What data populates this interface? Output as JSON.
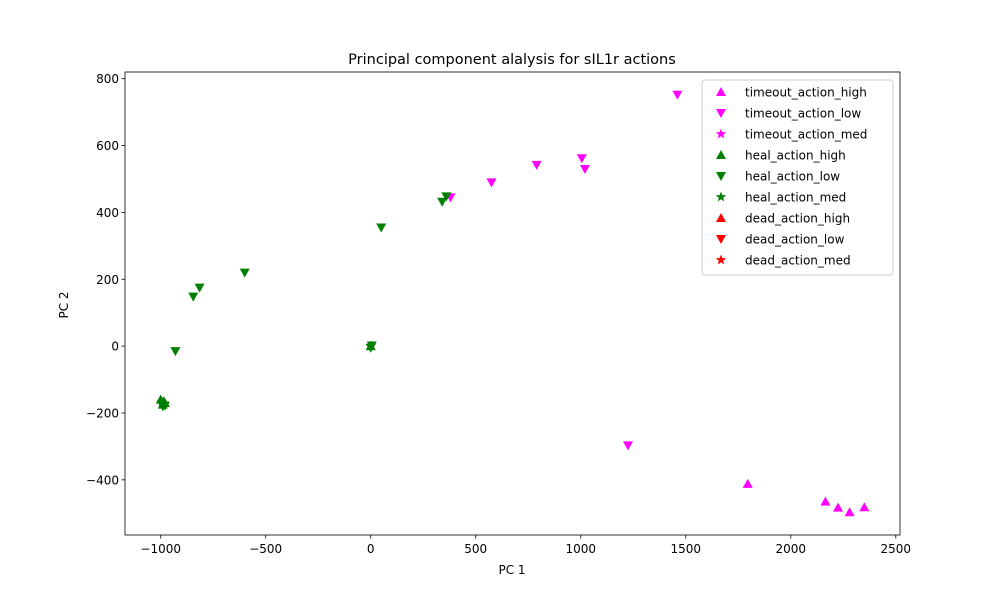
{
  "chart_data": {
    "type": "scatter",
    "title": "Principal component alalysis for sIL1r actions",
    "xlabel": "PC 1",
    "ylabel": "PC 2",
    "xlim": [
      -1170,
      2520
    ],
    "ylim": [
      -565,
      820
    ],
    "xticks": [
      -1000,
      -500,
      0,
      500,
      1000,
      1500,
      2000,
      2500
    ],
    "yticks": [
      -400,
      -200,
      0,
      200,
      400,
      600,
      800
    ],
    "grid": false,
    "legend_position": "top-right",
    "colors": {
      "timeout": "#ff00ff",
      "heal": "#008000",
      "dead": "#ff0000"
    },
    "series": [
      {
        "name": "timeout_action_high",
        "marker": "triangle-up",
        "color": "#ff00ff",
        "points": [
          [
            1795,
            -412
          ],
          [
            2165,
            -465
          ],
          [
            2225,
            -483
          ],
          [
            2280,
            -497
          ],
          [
            2350,
            -482
          ]
        ]
      },
      {
        "name": "timeout_action_low",
        "marker": "triangle-down",
        "color": "#ff00ff",
        "points": [
          [
            1460,
            752
          ],
          [
            1005,
            562
          ],
          [
            1020,
            530
          ],
          [
            790,
            542
          ],
          [
            575,
            490
          ],
          [
            380,
            445
          ],
          [
            1225,
            -297
          ]
        ]
      },
      {
        "name": "timeout_action_med",
        "marker": "star",
        "color": "#ff00ff",
        "points": []
      },
      {
        "name": "heal_action_high",
        "marker": "triangle-up",
        "color": "#008000",
        "points": [
          [
            -1000,
            -160
          ],
          [
            -985,
            -165
          ],
          [
            -990,
            -175
          ],
          [
            -980,
            -170
          ],
          [
            0,
            0
          ]
        ]
      },
      {
        "name": "heal_action_low",
        "marker": "triangle-down",
        "color": "#008000",
        "points": [
          [
            360,
            448
          ],
          [
            340,
            432
          ],
          [
            50,
            355
          ],
          [
            -600,
            220
          ],
          [
            -815,
            175
          ],
          [
            -845,
            148
          ],
          [
            -930,
            -15
          ],
          [
            -990,
            -180
          ],
          [
            -980,
            -178
          ],
          [
            0,
            -5
          ],
          [
            5,
            2
          ]
        ]
      },
      {
        "name": "heal_action_med",
        "marker": "star",
        "color": "#008000",
        "points": [
          [
            -995,
            -168
          ],
          [
            0,
            0
          ]
        ]
      },
      {
        "name": "dead_action_high",
        "marker": "triangle-up",
        "color": "#ff0000",
        "points": []
      },
      {
        "name": "dead_action_low",
        "marker": "triangle-down",
        "color": "#ff0000",
        "points": []
      },
      {
        "name": "dead_action_med",
        "marker": "star",
        "color": "#ff0000",
        "points": []
      }
    ]
  }
}
